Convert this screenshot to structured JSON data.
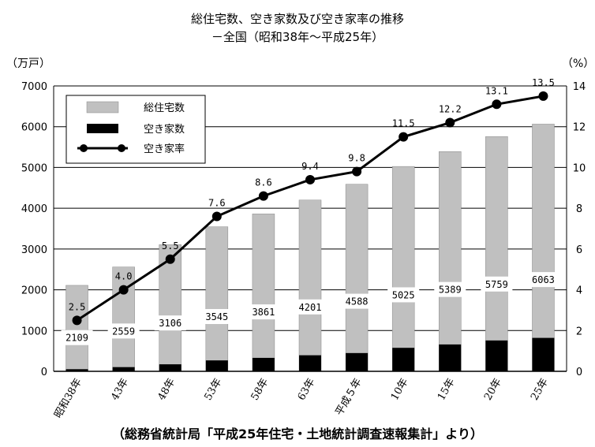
{
  "chart_data": {
    "type": "bar",
    "title": "総住宅数、空き家数及び空き家率の推移",
    "subtitle": "－全国（昭和38年～平成25年）",
    "y_left_unit": "（万戸）",
    "y_right_unit": "（%）",
    "categories": [
      "昭和38年",
      "43年",
      "48年",
      "53年",
      "58年",
      "63年",
      "平成５年",
      "10年",
      "15年",
      "20年",
      "25年"
    ],
    "ylim_left": [
      0,
      7000
    ],
    "yticks_left": [
      "0",
      "1000",
      "2000",
      "3000",
      "4000",
      "5000",
      "6000",
      "7000"
    ],
    "ylim_right": [
      0,
      14
    ],
    "yticks_right": [
      "0",
      "2",
      "4",
      "6",
      "8",
      "10",
      "12",
      "14"
    ],
    "grid": "horizontal",
    "legend_position": "top-left",
    "series": [
      {
        "name": "総住宅数",
        "kind": "bar",
        "axis": "left",
        "color": "#c0c0c0",
        "values": [
          2109,
          2559,
          3106,
          3545,
          3861,
          4201,
          4588,
          5025,
          5389,
          5759,
          6063
        ],
        "labels": [
          "2109",
          "2559",
          "3106",
          "3545",
          "3861",
          "4201",
          "4588",
          "5025",
          "5389",
          "5759",
          "6063"
        ]
      },
      {
        "name": "空き家数",
        "kind": "bar",
        "axis": "left",
        "color": "#000000",
        "values": [
          52,
          103,
          172,
          268,
          330,
          394,
          448,
          576,
          659,
          757,
          820
        ]
      },
      {
        "name": "空き家率",
        "kind": "line",
        "axis": "right",
        "color": "#000000",
        "values": [
          2.5,
          4.0,
          5.5,
          7.6,
          8.6,
          9.4,
          9.8,
          11.5,
          12.2,
          13.1,
          13.5
        ],
        "labels": [
          "2.5",
          "4.0",
          "5.5",
          "7.6",
          "8.6",
          "9.4",
          "9.8",
          "11.5",
          "12.2",
          "13.1",
          "13.5"
        ]
      }
    ]
  },
  "source_note": "（総務省統計局「平成25年住宅・土地統計調査速報集計」より）"
}
